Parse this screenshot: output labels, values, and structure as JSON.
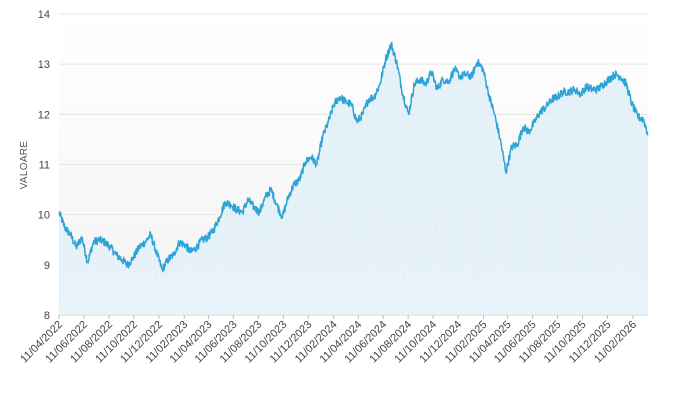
{
  "chart_data": {
    "type": "area",
    "title": "",
    "xlabel": "",
    "ylabel": "VALOARE",
    "ylim": [
      8,
      14
    ],
    "y_ticks": [
      "8",
      "9",
      "10",
      "11",
      "12",
      "13",
      "14"
    ],
    "x_tick_labels": [
      "11/04/2022",
      "11/06/2022",
      "11/08/2022",
      "11/10/2022",
      "11/12/2022",
      "11/02/2023",
      "11/04/2023",
      "11/06/2023",
      "11/08/2023",
      "11/10/2023",
      "11/12/2023",
      "11/02/2024",
      "11/04/2024",
      "11/06/2024",
      "11/08/2024",
      "11/10/2024",
      "11/12/2024",
      "11/02/2025",
      "11/04/2025",
      "11/06/2025",
      "11/08/2025",
      "11/10/2025",
      "11/12/2025",
      "11/02/2026"
    ],
    "grid": "horizontal",
    "line_color": "#2ea4d6",
    "fill_top_color": "#cfe7f5",
    "fill_bottom_color": "#e6f2f9",
    "series": [
      {
        "name": "",
        "x": [
          "2022-04-11",
          "2022-04-25",
          "2022-05-09",
          "2022-05-23",
          "2022-06-06",
          "2022-06-20",
          "2022-07-04",
          "2022-07-18",
          "2022-08-01",
          "2022-08-15",
          "2022-08-29",
          "2022-09-12",
          "2022-09-26",
          "2022-10-10",
          "2022-10-24",
          "2022-11-07",
          "2022-11-21",
          "2022-12-05",
          "2022-12-19",
          "2023-01-02",
          "2023-01-16",
          "2023-01-30",
          "2023-02-13",
          "2023-02-27",
          "2023-03-13",
          "2023-03-27",
          "2023-04-10",
          "2023-04-24",
          "2023-05-08",
          "2023-05-22",
          "2023-06-05",
          "2023-06-19",
          "2023-07-03",
          "2023-07-17",
          "2023-07-31",
          "2023-08-14",
          "2023-08-28",
          "2023-09-11",
          "2023-09-25",
          "2023-10-09",
          "2023-10-23",
          "2023-11-06",
          "2023-11-20",
          "2023-12-04",
          "2023-12-18",
          "2024-01-01",
          "2024-01-15",
          "2024-01-29",
          "2024-02-12",
          "2024-02-26",
          "2024-03-11",
          "2024-03-25",
          "2024-04-08",
          "2024-04-22",
          "2024-05-06",
          "2024-05-20",
          "2024-06-03",
          "2024-06-17",
          "2024-07-01",
          "2024-07-15",
          "2024-07-29",
          "2024-08-12",
          "2024-08-26",
          "2024-09-09",
          "2024-09-23",
          "2024-10-07",
          "2024-10-21",
          "2024-11-04",
          "2024-11-18",
          "2024-12-02",
          "2024-12-16",
          "2024-12-30",
          "2025-01-13",
          "2025-01-27",
          "2025-02-10",
          "2025-02-24",
          "2025-03-10",
          "2025-03-24",
          "2025-04-07",
          "2025-04-21",
          "2025-05-05",
          "2025-05-19",
          "2025-06-02",
          "2025-06-16",
          "2025-06-30",
          "2025-07-14",
          "2025-07-28",
          "2025-08-11",
          "2025-08-25",
          "2025-09-08",
          "2025-09-22",
          "2025-10-06",
          "2025-10-20",
          "2025-11-03",
          "2025-11-17",
          "2025-12-01",
          "2025-12-15",
          "2025-12-29",
          "2026-01-12",
          "2026-01-26",
          "2026-02-09",
          "2026-02-23",
          "2026-03-09",
          "2026-03-20"
        ],
        "values": [
          10.05,
          9.75,
          9.6,
          9.35,
          9.55,
          9.05,
          9.45,
          9.5,
          9.45,
          9.35,
          9.2,
          9.1,
          9.0,
          9.15,
          9.35,
          9.45,
          9.6,
          9.25,
          8.9,
          9.1,
          9.2,
          9.45,
          9.4,
          9.25,
          9.35,
          9.5,
          9.55,
          9.7,
          9.95,
          10.25,
          10.2,
          10.1,
          10.05,
          10.3,
          10.15,
          10.05,
          10.35,
          10.5,
          10.2,
          9.95,
          10.35,
          10.6,
          10.7,
          11.05,
          11.15,
          11.0,
          11.55,
          11.85,
          12.2,
          12.35,
          12.25,
          12.2,
          11.85,
          12.0,
          12.3,
          12.35,
          12.6,
          13.1,
          13.4,
          13.0,
          12.4,
          12.0,
          12.6,
          12.7,
          12.6,
          12.85,
          12.5,
          12.7,
          12.65,
          12.9,
          12.75,
          12.8,
          12.75,
          13.05,
          12.9,
          12.4,
          12.0,
          11.5,
          10.85,
          11.35,
          11.4,
          11.75,
          11.65,
          11.85,
          12.05,
          12.15,
          12.3,
          12.35,
          12.45,
          12.45,
          12.5,
          12.4,
          12.55,
          12.5,
          12.5,
          12.6,
          12.7,
          12.8,
          12.75,
          12.6,
          12.2,
          11.95,
          11.9,
          11.6
        ]
      }
    ]
  }
}
